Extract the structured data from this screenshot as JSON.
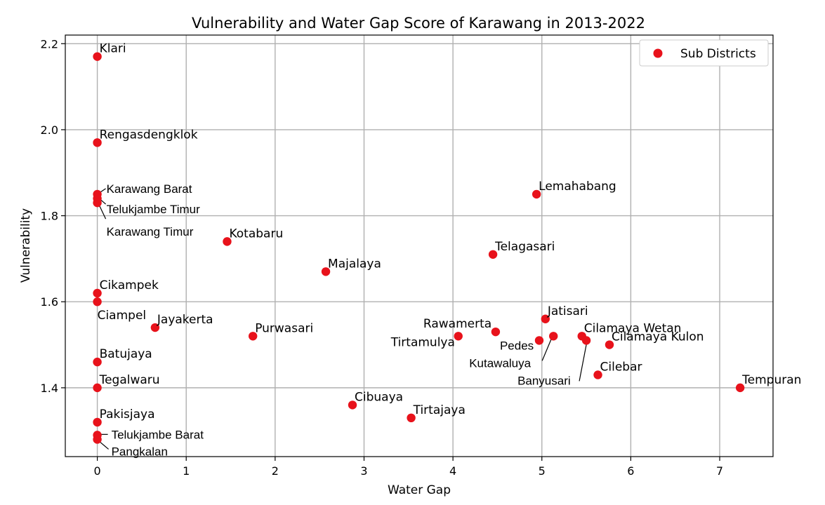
{
  "chart_data": {
    "type": "scatter",
    "title": "Vulnerability and Water Gap Score of Karawang in 2013-2022",
    "xlabel": "Water Gap",
    "ylabel": "Vulnerability",
    "xlim": [
      -0.36,
      7.6
    ],
    "ylim": [
      1.24,
      2.22
    ],
    "xticks": [
      "0",
      "1",
      "2",
      "3",
      "4",
      "5",
      "6",
      "7"
    ],
    "yticks": [
      "1.4",
      "1.6",
      "1.8",
      "2.0",
      "2.2"
    ],
    "grid": true,
    "legend": {
      "position": "top-right",
      "entries": [
        "Sub Districts"
      ]
    },
    "marker_color": "#e8121b",
    "series": [
      {
        "name": "Sub Districts",
        "points": [
          {
            "label": "Klari",
            "x": 0.0,
            "y": 2.17
          },
          {
            "label": "Rengasdengklok",
            "x": 0.0,
            "y": 1.97
          },
          {
            "label": "Karawang Barat",
            "x": 0.0,
            "y": 1.85
          },
          {
            "label": "Telukjambe Timur",
            "x": 0.0,
            "y": 1.84
          },
          {
            "label": "Karawang Timur",
            "x": 0.0,
            "y": 1.83
          },
          {
            "label": "Kotabaru",
            "x": 1.46,
            "y": 1.74
          },
          {
            "label": "Majalaya",
            "x": 2.57,
            "y": 1.67
          },
          {
            "label": "Lemahabang",
            "x": 4.94,
            "y": 1.85
          },
          {
            "label": "Telagasari",
            "x": 4.45,
            "y": 1.71
          },
          {
            "label": "Cikampek",
            "x": 0.0,
            "y": 1.62
          },
          {
            "label": "Ciampel",
            "x": 0.0,
            "y": 1.6
          },
          {
            "label": "Jayakerta",
            "x": 0.65,
            "y": 1.54
          },
          {
            "label": "Purwasari",
            "x": 1.75,
            "y": 1.52
          },
          {
            "label": "Rawamerta",
            "x": 4.48,
            "y": 1.53
          },
          {
            "label": "Tirtamulya",
            "x": 4.06,
            "y": 1.52
          },
          {
            "label": "Jatisari",
            "x": 5.04,
            "y": 1.56
          },
          {
            "label": "Pedes",
            "x": 4.97,
            "y": 1.51
          },
          {
            "label": "Kutawaluya",
            "x": 5.13,
            "y": 1.52
          },
          {
            "label": "Cilamaya Wetan",
            "x": 5.45,
            "y": 1.52
          },
          {
            "label": "Banyusari",
            "x": 5.5,
            "y": 1.51
          },
          {
            "label": "Cilamaya Kulon",
            "x": 5.76,
            "y": 1.5
          },
          {
            "label": "Batujaya",
            "x": 0.0,
            "y": 1.46
          },
          {
            "label": "Cilebar",
            "x": 5.63,
            "y": 1.43
          },
          {
            "label": "Tegalwaru",
            "x": 0.0,
            "y": 1.4
          },
          {
            "label": "Tempuran",
            "x": 7.23,
            "y": 1.4
          },
          {
            "label": "Cibuaya",
            "x": 2.87,
            "y": 1.36
          },
          {
            "label": "Tirtajaya",
            "x": 3.53,
            "y": 1.33
          },
          {
            "label": "Pakisjaya",
            "x": 0.0,
            "y": 1.32
          },
          {
            "label": "Telukjambe Barat",
            "x": 0.0,
            "y": 1.29
          },
          {
            "label": "Pangkalan",
            "x": 0.0,
            "y": 1.28
          }
        ]
      }
    ]
  }
}
